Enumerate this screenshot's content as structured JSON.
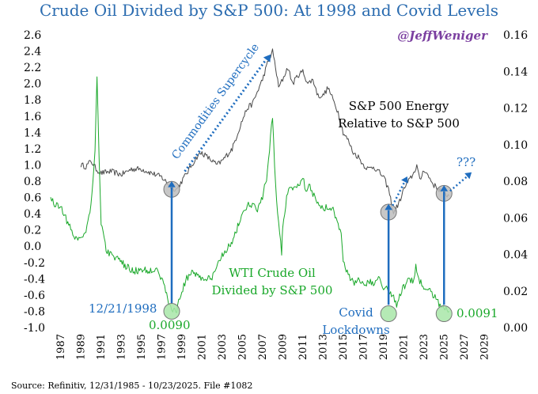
{
  "colors": {
    "title": "#2b6cb0",
    "gray_series": "#4a4a4a",
    "green_series": "#1aa82a",
    "blue_annotation": "#1f6dbf",
    "handle": "#7b3fa0",
    "circle_gray": "#bdbdbd",
    "circle_green": "#a8e6a8"
  },
  "chart_data": {
    "type": "line",
    "title": "Crude Oil Divided by S&P 500: At 1998 and Covid Levels",
    "handle": "@JeffWeniger",
    "source": "Source: Refinitiv, 12/31/1985 - 10/23/2025. File #1082",
    "x_ticks": [
      "1987",
      "1989",
      "1991",
      "1993",
      "1995",
      "1997",
      "1999",
      "2001",
      "2003",
      "2005",
      "2007",
      "2009",
      "2011",
      "2013",
      "2015",
      "2017",
      "2019",
      "2021",
      "2023",
      "2025",
      "2027",
      "2029"
    ],
    "xlim": [
      1986.0,
      2030.0
    ],
    "y_left": {
      "ticks": [
        "2.6",
        "2.4",
        "2.2",
        "2.0",
        "1.8",
        "1.6",
        "1.4",
        "1.2",
        "1.0",
        "0.8",
        "0.6",
        "0.4",
        "0.2",
        "0.0",
        "-0.2",
        "-0.4",
        "-0.6",
        "-0.8",
        "-1.0"
      ],
      "lim": [
        -1.0,
        2.6
      ]
    },
    "y_right": {
      "ticks": [
        "0.16",
        "0.14",
        "0.12",
        "0.10",
        "0.08",
        "0.06",
        "0.04",
        "0.02",
        "0.00"
      ],
      "lim": [
        0.0,
        0.16
      ]
    },
    "series": [
      {
        "name": "S&P 500 Energy Relative to S&P 500",
        "axis": "left",
        "x": [
          1989.0,
          1989.5,
          1990.0,
          1990.5,
          1991.0,
          1992.0,
          1993.0,
          1994.0,
          1995.0,
          1996.0,
          1997.0,
          1998.0,
          1998.5,
          1999.0,
          1999.5,
          2000.0,
          2000.5,
          2001.0,
          2001.5,
          2002.0,
          2002.5,
          2003.0,
          2004.0,
          2005.0,
          2005.5,
          2006.0,
          2006.5,
          2007.0,
          2007.5,
          2008.0,
          2008.3,
          2008.6,
          2009.0,
          2009.5,
          2010.0,
          2010.5,
          2011.0,
          2011.5,
          2012.0,
          2012.5,
          2013.0,
          2013.5,
          2014.0,
          2014.5,
          2015.0,
          2015.5,
          2016.0,
          2016.5,
          2017.0,
          2017.5,
          2018.0,
          2018.5,
          2019.0,
          2019.5,
          2020.0,
          2020.3,
          2020.6,
          2021.0,
          2021.5,
          2022.0,
          2022.3,
          2022.6,
          2023.0,
          2023.5,
          2024.0,
          2024.5,
          2025.0,
          2025.5
        ],
        "y": [
          1.0,
          0.98,
          1.05,
          0.95,
          0.9,
          0.92,
          0.88,
          0.95,
          0.95,
          0.9,
          0.85,
          0.72,
          0.7,
          0.8,
          0.9,
          1.0,
          1.1,
          1.15,
          1.1,
          1.05,
          1.0,
          1.05,
          1.2,
          1.55,
          1.7,
          1.75,
          1.9,
          2.05,
          2.25,
          2.4,
          2.2,
          1.95,
          2.05,
          2.2,
          2.0,
          2.1,
          2.15,
          2.0,
          2.05,
          1.85,
          1.85,
          1.95,
          1.8,
          1.65,
          1.4,
          1.3,
          1.15,
          1.1,
          1.0,
          0.95,
          0.98,
          0.92,
          0.85,
          0.7,
          0.4,
          0.48,
          0.55,
          0.7,
          0.8,
          0.9,
          1.0,
          0.8,
          0.95,
          0.85,
          0.75,
          0.7,
          0.65,
          0.62
        ]
      },
      {
        "name": "WTI Crude Oil Divided by S&P 500",
        "axis": "left",
        "x": [
          1986.0,
          1986.5,
          1987.0,
          1987.5,
          1988.0,
          1988.5,
          1989.0,
          1989.5,
          1990.0,
          1990.4,
          1990.6,
          1990.8,
          1991.0,
          1991.5,
          1992.0,
          1993.0,
          1994.0,
          1995.0,
          1996.0,
          1996.5,
          1997.0,
          1997.5,
          1998.0,
          1998.5,
          1999.0,
          1999.5,
          2000.0,
          2001.0,
          2002.0,
          2003.0,
          2004.0,
          2005.0,
          2005.5,
          2006.0,
          2006.5,
          2007.0,
          2007.5,
          2008.0,
          2008.2,
          2008.5,
          2008.9,
          2009.0,
          2009.3,
          2009.6,
          2010.0,
          2010.5,
          2011.0,
          2011.3,
          2011.6,
          2012.0,
          2012.5,
          2013.0,
          2013.5,
          2014.0,
          2014.5,
          2014.8,
          2015.0,
          2015.5,
          2016.0,
          2016.5,
          2017.0,
          2017.5,
          2018.0,
          2018.5,
          2019.0,
          2019.5,
          2020.0,
          2020.3,
          2020.6,
          2021.0,
          2021.5,
          2022.0,
          2022.2,
          2022.5,
          2023.0,
          2023.5,
          2024.0,
          2024.5,
          2025.0,
          2025.5
        ],
        "y": [
          0.6,
          0.5,
          0.5,
          0.35,
          0.2,
          0.1,
          0.1,
          0.2,
          0.5,
          1.2,
          2.1,
          1.1,
          0.3,
          -0.05,
          -0.1,
          -0.2,
          -0.3,
          -0.3,
          -0.3,
          -0.25,
          -0.4,
          -0.6,
          -0.8,
          -0.78,
          -0.55,
          -0.4,
          -0.3,
          -0.4,
          -0.4,
          -0.1,
          0.05,
          0.4,
          0.5,
          0.5,
          0.45,
          0.6,
          0.9,
          1.6,
          1.0,
          0.4,
          -0.1,
          0.25,
          0.5,
          0.75,
          0.7,
          0.75,
          0.85,
          0.7,
          0.75,
          0.65,
          0.55,
          0.45,
          0.5,
          0.45,
          0.3,
          0.15,
          -0.2,
          -0.35,
          -0.45,
          -0.4,
          -0.45,
          -0.45,
          -0.45,
          -0.35,
          -0.5,
          -0.55,
          -0.6,
          -0.75,
          -0.6,
          -0.5,
          -0.4,
          -0.45,
          -0.25,
          -0.4,
          -0.5,
          -0.55,
          -0.6,
          -0.7,
          -0.75,
          -0.8
        ]
      }
    ],
    "annotations": {
      "supercycle": "Commodities Supercycle",
      "energy_line1": "S&P 500 Energy",
      "energy_line2": "Relative to S&P 500",
      "wti_line1": "WTI Crude Oil",
      "wti_line2": "Divided by S&P 500",
      "date_1998": "12/21/1998",
      "val_1998": "0.0090",
      "covid_line1": "Covid",
      "covid_line2": "Lockdowns",
      "val_2025": "0.0091",
      "question": "???"
    }
  }
}
